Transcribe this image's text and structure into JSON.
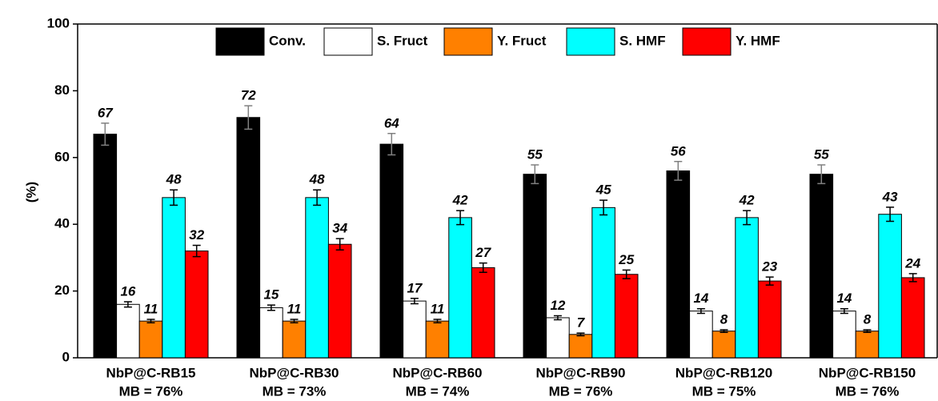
{
  "chart_data": {
    "type": "bar",
    "y_label": "(%)",
    "categories": [
      "NbP@C-RB15",
      "NbP@C-RB30",
      "NbP@C-RB60",
      "NbP@C-RB90",
      "NbP@C-RB120",
      "NbP@C-RB150"
    ],
    "subcategories": [
      "MB = 76%",
      "MB = 73%",
      "MB = 74%",
      "MB = 76%",
      "MB = 75%",
      "MB = 76%"
    ],
    "series": [
      {
        "name": "Conv.",
        "color": "#000000",
        "error_color": "#808080",
        "values": [
          67,
          72,
          64,
          55,
          56,
          55
        ],
        "errors": [
          3.3,
          3.5,
          3.2,
          2.8,
          2.8,
          2.8
        ]
      },
      {
        "name": "S. Fruct",
        "color": "#ffffff",
        "error_color": "#000000",
        "values": [
          16,
          15,
          17,
          12,
          14,
          14
        ],
        "errors": [
          0.8,
          0.8,
          0.8,
          0.6,
          0.7,
          0.7
        ]
      },
      {
        "name": "Y. Fruct",
        "color": "#ff8000",
        "error_color": "#000000",
        "values": [
          11,
          11,
          11,
          7,
          8,
          8
        ],
        "errors": [
          0.5,
          0.5,
          0.5,
          0.4,
          0.4,
          0.4
        ]
      },
      {
        "name": "S. HMF",
        "color": "#00ffff",
        "error_color": "#000000",
        "values": [
          48,
          48,
          42,
          45,
          42,
          43
        ],
        "errors": [
          2.3,
          2.3,
          2.1,
          2.2,
          2.1,
          2.1
        ]
      },
      {
        "name": "Y. HMF",
        "color": "#ff0000",
        "error_color": "#000000",
        "values": [
          32,
          34,
          27,
          25,
          23,
          24
        ],
        "errors": [
          1.7,
          1.7,
          1.4,
          1.3,
          1.2,
          1.2
        ]
      }
    ],
    "ylim": [
      0,
      100
    ],
    "yticks": [
      0,
      20,
      40,
      60,
      80,
      100
    ],
    "legend": "top"
  }
}
